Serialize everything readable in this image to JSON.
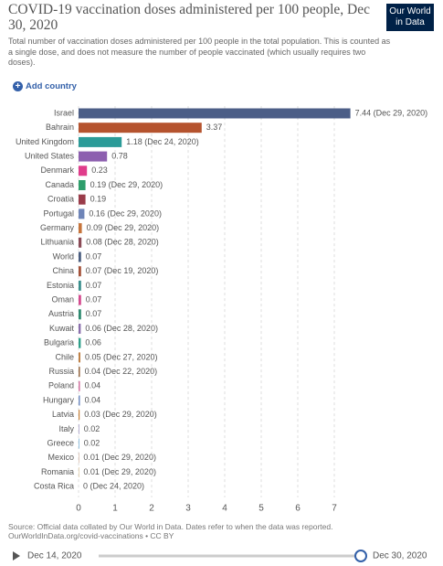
{
  "chart_data": {
    "type": "bar",
    "orientation": "horizontal",
    "title": "COVID-19 vaccination doses administered per 100 people, Dec 30, 2020",
    "subtitle": "Total number of vaccination doses administered per 100 people in the total population. This is counted as a single dose, and does not measure the number of people vaccinated (which usually requires two doses).",
    "logo": "Our World in Data",
    "add_button": "Add country",
    "categories": [
      "Israel",
      "Bahrain",
      "United Kingdom",
      "United States",
      "Denmark",
      "Canada",
      "Croatia",
      "Portugal",
      "Germany",
      "Lithuania",
      "World",
      "China",
      "Estonia",
      "Oman",
      "Austria",
      "Kuwait",
      "Bulgaria",
      "Chile",
      "Russia",
      "Poland",
      "Hungary",
      "Latvia",
      "Italy",
      "Greece",
      "Mexico",
      "Romania",
      "Costa Rica"
    ],
    "values": [
      7.44,
      3.37,
      1.18,
      0.78,
      0.23,
      0.19,
      0.19,
      0.16,
      0.09,
      0.08,
      0.07,
      0.07,
      0.07,
      0.07,
      0.07,
      0.06,
      0.06,
      0.05,
      0.04,
      0.04,
      0.04,
      0.03,
      0.02,
      0.02,
      0.01,
      0.01,
      0
    ],
    "value_labels": [
      "7.44 (Dec 29, 2020)",
      "3.37",
      "1.18 (Dec 24, 2020)",
      "0.78",
      "0.23",
      "0.19 (Dec 29, 2020)",
      "0.19",
      "0.16 (Dec 29, 2020)",
      "0.09 (Dec 29, 2020)",
      "0.08 (Dec 28, 2020)",
      "0.07",
      "0.07 (Dec 19, 2020)",
      "0.07",
      "0.07",
      "0.07",
      "0.06 (Dec 28, 2020)",
      "0.06",
      "0.05 (Dec 27, 2020)",
      "0.04 (Dec 22, 2020)",
      "0.04",
      "0.04",
      "0.03 (Dec 29, 2020)",
      "0.02",
      "0.02",
      "0.01 (Dec 29, 2020)",
      "0.01 (Dec 29, 2020)",
      "0 (Dec 24, 2020)"
    ],
    "colors": [
      "#4c5e87",
      "#b5532e",
      "#2b9b98",
      "#8d5faf",
      "#e03c8b",
      "#2e9e6b",
      "#9a3c4a",
      "#6f85b8",
      "#c6743b",
      "#8a4a56",
      "#4a5d80",
      "#a5523a",
      "#3a8f8d",
      "#d44a8f",
      "#2e8a70",
      "#8b6fad",
      "#2fa08a",
      "#c08247",
      "#9b6f4a",
      "#d57aa6",
      "#7a93c6",
      "#c8823a",
      "#a8a0c8",
      "#7ab4d8",
      "#b07a5a",
      "#c7a05a",
      "#999999"
    ],
    "xlim": [
      0,
      7.5
    ],
    "xticks": [
      0,
      1,
      2,
      3,
      4,
      5,
      6,
      7
    ],
    "grid": true,
    "source": "Source: Official data collated by Our World in Data. Dates refer to when the data was reported.",
    "source_url": "OurWorldInData.org/covid-vaccinations • CC BY",
    "timeline_start": "Dec 14, 2020",
    "timeline_end": "Dec 30, 2020"
  }
}
